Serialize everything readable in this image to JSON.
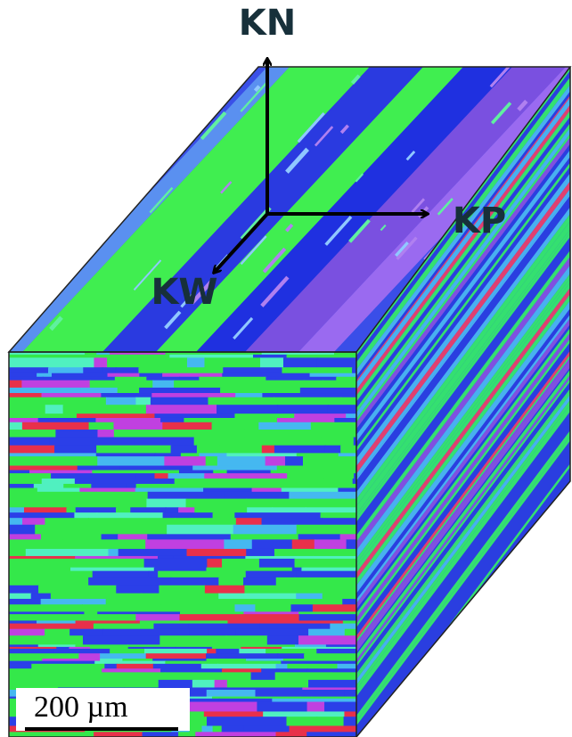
{
  "axes": {
    "normal": "KN",
    "transverse": "KP",
    "rolling": "KW"
  },
  "scale_bar": {
    "label": "200 µm"
  }
}
